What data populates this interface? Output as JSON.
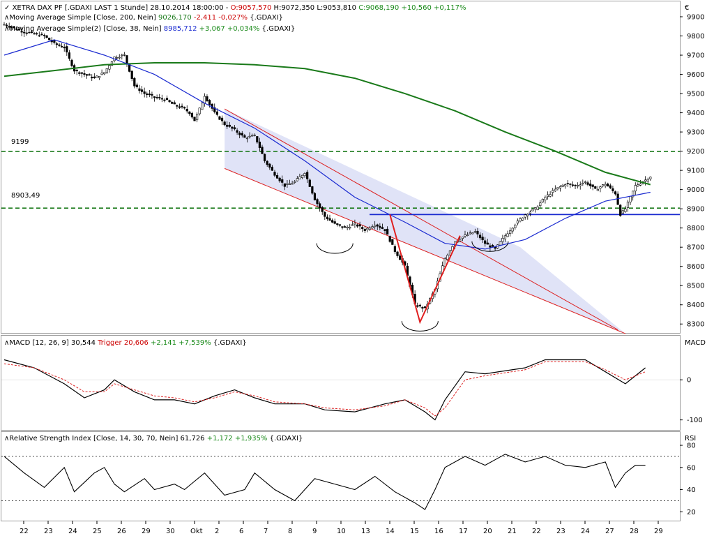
{
  "price": {
    "header": {
      "title": "XETRA DAX PF [.GDAXI LAST 1 Stunde] 28.10.2014 18:00:00 - ",
      "ohlc_o": "O:9057,570",
      "ohlc_h": " H:9072,350",
      "ohlc_l": " L:9053,810",
      "ohlc_c": " C:9068,190 +10,560 +0,117%"
    },
    "ma200": {
      "label": "Moving Average Simple [Close, 200, Nein] ",
      "value": "9026,170",
      "change": " -2,411 -0,027%",
      "suffix": " {.GDAXI}"
    },
    "ma38": {
      "label": "Moving Average Simple(2) [Close, 38, Nein] ",
      "value": "8985,712",
      "change": " +3,067 +0,034%",
      "suffix": " {.GDAXI}"
    },
    "currency": "€",
    "levels": {
      "l1_label": "9199",
      "l2_label": "8903,49"
    }
  },
  "macd": {
    "label": "MACD [12, 26, 9] 30,544 ",
    "trigger": "Trigger 20,606",
    "change": " +2,141 +7,539%",
    "suffix": " {.GDAXI}",
    "axis_title": "MACD"
  },
  "rsi": {
    "label": "Relative Strength Index [Close, 14, 30, 70, Nein] 61,726 ",
    "change": "+1,172 +1,935%",
    "suffix": " {.GDAXI}",
    "axis_title": "RSI"
  },
  "colors": {
    "ma200": "#1a7a1a",
    "ma38": "#1a2ad0",
    "hline": "#1a2ad0",
    "channel": "#dd2222",
    "channel_fill": "#d8dcf5",
    "dashed": "#1a7a1a",
    "v_pattern": "#e02020"
  },
  "chart_data": [
    {
      "type": "candlestick",
      "panel": "price",
      "ylim": [
        8250,
        9980
      ],
      "y_ticks": [
        8300,
        8400,
        8500,
        8600,
        8700,
        8800,
        8900,
        9000,
        9100,
        9200,
        9300,
        9400,
        9500,
        9600,
        9700,
        9800,
        9900
      ],
      "y_tick_labels": [
        "8300",
        "8400",
        "8500",
        "8600",
        "8700",
        "8800",
        "8900",
        "9000",
        "9100",
        "9200",
        "9300",
        "9400",
        "9500",
        "9600",
        "9700",
        "9800",
        "9900"
      ],
      "x_ticks": [
        "22",
        "23",
        "24",
        "25",
        "26",
        "29",
        "30",
        "Okt",
        "2",
        "6",
        "7",
        "8",
        "9",
        "10",
        "13",
        "14",
        "15",
        "16",
        "17",
        "20",
        "21",
        "22",
        "23",
        "24",
        "27",
        "28",
        "29"
      ],
      "close_path": [
        [
          0,
          9860
        ],
        [
          2,
          9820
        ],
        [
          4,
          9800
        ],
        [
          5,
          9760
        ],
        [
          6,
          9740
        ],
        [
          7,
          9620
        ],
        [
          8,
          9600
        ],
        [
          9,
          9580
        ],
        [
          10,
          9610
        ],
        [
          11,
          9690
        ],
        [
          12,
          9700
        ],
        [
          13,
          9540
        ],
        [
          14,
          9500
        ],
        [
          15,
          9480
        ],
        [
          16,
          9470
        ],
        [
          17,
          9440
        ],
        [
          18,
          9420
        ],
        [
          18.5,
          9400
        ],
        [
          19,
          9360
        ],
        [
          19.5,
          9420
        ],
        [
          20,
          9490
        ],
        [
          21,
          9400
        ],
        [
          22,
          9340
        ],
        [
          23,
          9310
        ],
        [
          24,
          9270
        ],
        [
          25,
          9280
        ],
        [
          25.5,
          9220
        ],
        [
          26,
          9150
        ],
        [
          27,
          9080
        ],
        [
          28,
          9020
        ],
        [
          29,
          9040
        ],
        [
          30,
          9090
        ],
        [
          31,
          8950
        ],
        [
          32,
          8860
        ],
        [
          33,
          8820
        ],
        [
          34,
          8800
        ],
        [
          35,
          8820
        ],
        [
          36,
          8790
        ],
        [
          37,
          8820
        ],
        [
          38,
          8790
        ],
        [
          39,
          8680
        ],
        [
          40,
          8600
        ],
        [
          41,
          8400
        ],
        [
          42,
          8380
        ],
        [
          43,
          8480
        ],
        [
          44,
          8640
        ],
        [
          45,
          8730
        ],
        [
          46,
          8760
        ],
        [
          47,
          8780
        ],
        [
          48,
          8720
        ],
        [
          49,
          8690
        ],
        [
          50,
          8760
        ],
        [
          51,
          8820
        ],
        [
          52,
          8870
        ],
        [
          53,
          8900
        ],
        [
          54,
          8960
        ],
        [
          55,
          9000
        ],
        [
          56,
          9030
        ],
        [
          57,
          9020
        ],
        [
          58,
          9040
        ],
        [
          59,
          9000
        ],
        [
          60,
          9030
        ],
        [
          61,
          8980
        ],
        [
          61.5,
          8870
        ],
        [
          62,
          8900
        ],
        [
          63,
          9020
        ],
        [
          64,
          9050
        ],
        [
          64.5,
          9068
        ]
      ],
      "ma200": [
        [
          0,
          9590
        ],
        [
          5,
          9620
        ],
        [
          10,
          9650
        ],
        [
          15,
          9660
        ],
        [
          20,
          9660
        ],
        [
          25,
          9650
        ],
        [
          30,
          9630
        ],
        [
          35,
          9580
        ],
        [
          40,
          9500
        ],
        [
          45,
          9410
        ],
        [
          50,
          9300
        ],
        [
          55,
          9200
        ],
        [
          60,
          9090
        ],
        [
          64.5,
          9026
        ]
      ],
      "ma38": [
        [
          0,
          9700
        ],
        [
          5,
          9780
        ],
        [
          10,
          9700
        ],
        [
          15,
          9600
        ],
        [
          20,
          9450
        ],
        [
          25,
          9320
        ],
        [
          30,
          9150
        ],
        [
          35,
          8960
        ],
        [
          40,
          8830
        ],
        [
          44,
          8720
        ],
        [
          48,
          8690
        ],
        [
          52,
          8740
        ],
        [
          56,
          8850
        ],
        [
          60,
          8940
        ],
        [
          64.5,
          8986
        ]
      ],
      "horizontal_lines": [
        9199,
        8903.49,
        8870
      ],
      "channel": {
        "upper": [
          [
            22,
            9420
          ],
          [
            51.5,
            8700
          ]
        ],
        "lower": [
          [
            22,
            9110
          ],
          [
            62,
            8250
          ]
        ]
      }
    },
    {
      "type": "line",
      "panel": "macd",
      "series": [
        {
          "name": "MACD",
          "values": [
            [
              0,
              50
            ],
            [
              3,
              30
            ],
            [
              6,
              -10
            ],
            [
              8,
              -45
            ],
            [
              10,
              -25
            ],
            [
              11,
              0
            ],
            [
              13,
              -30
            ],
            [
              15,
              -50
            ],
            [
              17,
              -50
            ],
            [
              19,
              -60
            ],
            [
              21,
              -40
            ],
            [
              23,
              -25
            ],
            [
              25,
              -45
            ],
            [
              27,
              -60
            ],
            [
              30,
              -60
            ],
            [
              32,
              -75
            ],
            [
              35,
              -80
            ],
            [
              38,
              -60
            ],
            [
              40,
              -50
            ],
            [
              42,
              -80
            ],
            [
              43,
              -100
            ],
            [
              44,
              -50
            ],
            [
              46,
              20
            ],
            [
              48,
              15
            ],
            [
              52,
              30
            ],
            [
              54,
              50
            ],
            [
              58,
              50
            ],
            [
              60,
              20
            ],
            [
              62,
              -10
            ],
            [
              64,
              30
            ]
          ]
        },
        {
          "name": "Trigger",
          "values": [
            [
              0,
              40
            ],
            [
              3,
              30
            ],
            [
              6,
              0
            ],
            [
              8,
              -30
            ],
            [
              10,
              -30
            ],
            [
              11,
              -10
            ],
            [
              13,
              -25
            ],
            [
              15,
              -40
            ],
            [
              17,
              -45
            ],
            [
              19,
              -55
            ],
            [
              21,
              -45
            ],
            [
              23,
              -30
            ],
            [
              25,
              -40
            ],
            [
              27,
              -55
            ],
            [
              30,
              -60
            ],
            [
              32,
              -70
            ],
            [
              35,
              -75
            ],
            [
              38,
              -65
            ],
            [
              40,
              -50
            ],
            [
              42,
              -70
            ],
            [
              43,
              -90
            ],
            [
              44,
              -70
            ],
            [
              46,
              0
            ],
            [
              48,
              10
            ],
            [
              52,
              25
            ],
            [
              54,
              45
            ],
            [
              58,
              45
            ],
            [
              60,
              25
            ],
            [
              62,
              0
            ],
            [
              64,
              20
            ]
          ]
        }
      ],
      "ylim": [
        -125,
        110
      ],
      "y_ticks": [
        -100,
        0
      ]
    },
    {
      "type": "line",
      "panel": "rsi",
      "series": [
        {
          "name": "RSI",
          "values": [
            [
              0,
              70
            ],
            [
              2,
              55
            ],
            [
              4,
              42
            ],
            [
              6,
              60
            ],
            [
              7,
              38
            ],
            [
              9,
              55
            ],
            [
              10,
              60
            ],
            [
              11,
              45
            ],
            [
              12,
              38
            ],
            [
              14,
              50
            ],
            [
              15,
              40
            ],
            [
              17,
              45
            ],
            [
              18,
              40
            ],
            [
              20,
              55
            ],
            [
              22,
              35
            ],
            [
              24,
              40
            ],
            [
              25,
              55
            ],
            [
              27,
              40
            ],
            [
              29,
              30
            ],
            [
              31,
              50
            ],
            [
              33,
              45
            ],
            [
              35,
              40
            ],
            [
              37,
              52
            ],
            [
              39,
              38
            ],
            [
              41,
              28
            ],
            [
              42,
              22
            ],
            [
              43,
              40
            ],
            [
              44,
              60
            ],
            [
              46,
              70
            ],
            [
              48,
              62
            ],
            [
              50,
              72
            ],
            [
              52,
              65
            ],
            [
              54,
              70
            ],
            [
              56,
              62
            ],
            [
              58,
              60
            ],
            [
              60,
              65
            ],
            [
              61,
              42
            ],
            [
              62,
              55
            ],
            [
              63,
              62
            ],
            [
              64,
              62
            ]
          ]
        }
      ],
      "ylim": [
        12,
        92
      ],
      "y_ticks": [
        20,
        40,
        60,
        80
      ],
      "bands": [
        30,
        70
      ]
    }
  ]
}
